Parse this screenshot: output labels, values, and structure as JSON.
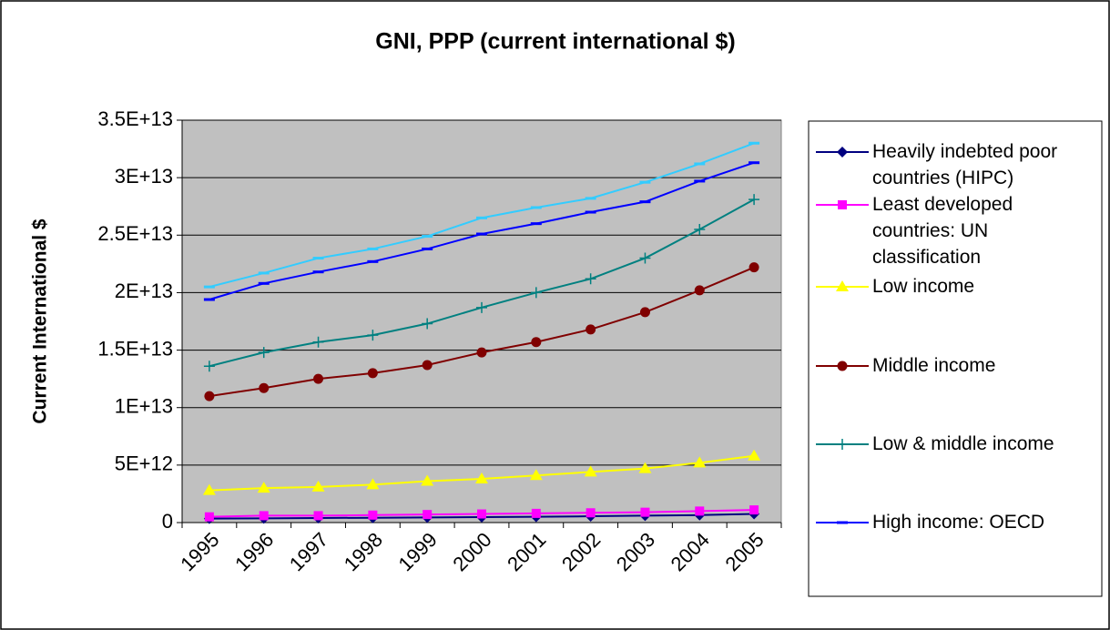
{
  "chart_data": {
    "type": "line",
    "title": "GNI, PPP (current international $)",
    "y_label": "Current International $",
    "categories": [
      "1995",
      "1996",
      "1997",
      "1998",
      "1999",
      "2000",
      "2001",
      "2002",
      "2003",
      "2004",
      "2005"
    ],
    "ylim": [
      0,
      35000000000000.0
    ],
    "yticks": [
      0,
      {
        "value": 5000000000000.0,
        "label": "5E+12"
      },
      {
        "value": 10000000000000.0,
        "label": "1E+13"
      },
      {
        "value": 15000000000000.0,
        "label": "1.5E+13"
      },
      {
        "value": 20000000000000.0,
        "label": "2E+13"
      },
      {
        "value": 25000000000000.0,
        "label": "2.5E+13"
      },
      {
        "value": 30000000000000.0,
        "label": "3E+13"
      },
      {
        "value": 35000000000000.0,
        "label": "3.5E+13"
      }
    ],
    "grid": true,
    "plot_background": "#c0c0c0",
    "legend": "right",
    "series": [
      {
        "name": "Heavily indebted poor countries (HIPC)",
        "color": "#000080",
        "marker": "diamond",
        "values": [
          350000000000.0,
          370000000000.0,
          400000000000.0,
          420000000000.0,
          450000000000.0,
          480000000000.0,
          500000000000.0,
          550000000000.0,
          600000000000.0,
          650000000000.0,
          750000000000.0
        ]
      },
      {
        "name": "Least developed countries: UN classification",
        "color": "#ff00ff",
        "marker": "square",
        "values": [
          500000000000.0,
          600000000000.0,
          600000000000.0,
          650000000000.0,
          700000000000.0,
          750000000000.0,
          800000000000.0,
          850000000000.0,
          900000000000.0,
          1000000000000.0,
          1100000000000.0
        ]
      },
      {
        "name": "Low income",
        "color": "#ffff00",
        "marker": "triangle",
        "values": [
          2800000000000.0,
          3000000000000.0,
          3100000000000.0,
          3300000000000.0,
          3600000000000.0,
          3800000000000.0,
          4100000000000.0,
          4400000000000.0,
          4700000000000.0,
          5200000000000.0,
          5800000000000.0
        ]
      },
      {
        "name": "Middle income",
        "color": "#800000",
        "marker": "circle",
        "values": [
          11000000000000.0,
          11700000000000.0,
          12500000000000.0,
          13000000000000.0,
          13700000000000.0,
          14800000000000.0,
          15700000000000.0,
          16800000000000.0,
          18300000000000.0,
          20200000000000.0,
          22200000000000.0
        ]
      },
      {
        "name": "Low & middle income",
        "color": "#008080",
        "marker": "plus",
        "values": [
          13600000000000.0,
          14800000000000.0,
          15700000000000.0,
          16300000000000.0,
          17300000000000.0,
          18700000000000.0,
          20000000000000.0,
          21200000000000.0,
          23000000000000.0,
          25500000000000.0,
          28100000000000.0
        ]
      },
      {
        "name": "High income: OECD",
        "color": "#0000ff",
        "marker": "dash",
        "values": [
          19400000000000.0,
          20800000000000.0,
          21800000000000.0,
          22700000000000.0,
          23800000000000.0,
          25100000000000.0,
          26000000000000.0,
          27000000000000.0,
          27900000000000.0,
          29700000000000.0,
          31300000000000.0
        ]
      },
      {
        "name": null,
        "color": "#33ccff",
        "marker": "dash",
        "values": [
          20500000000000.0,
          21700000000000.0,
          23000000000000.0,
          23800000000000.0,
          24900000000000.0,
          26500000000000.0,
          27400000000000.0,
          28200000000000.0,
          29600000000000.0,
          31200000000000.0,
          33000000000000.0
        ]
      }
    ]
  }
}
